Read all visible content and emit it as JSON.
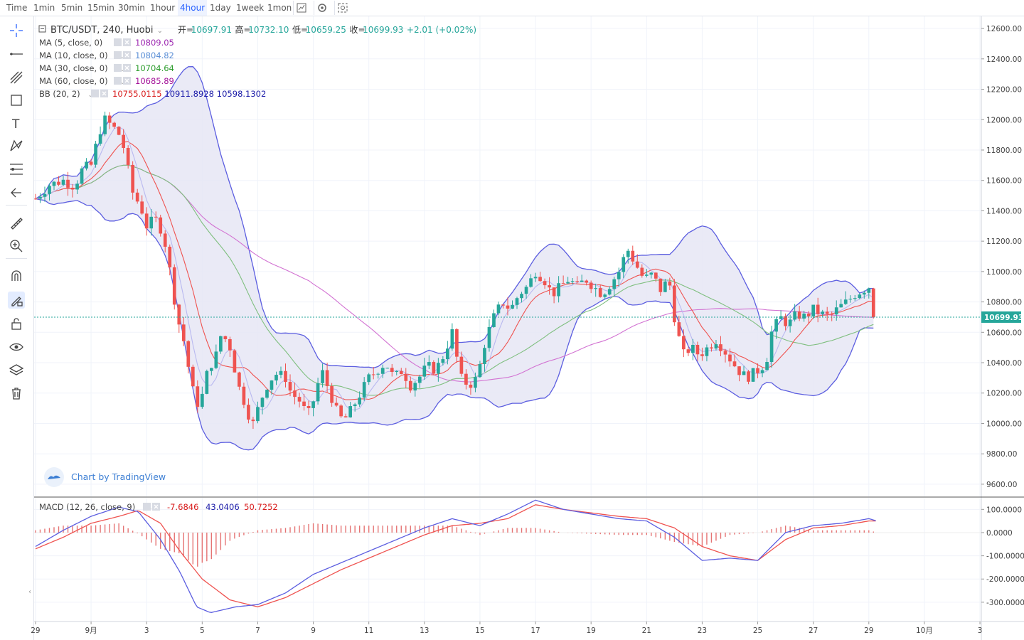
{
  "toolbar": {
    "timeframes": [
      {
        "label": "Time",
        "active": false
      },
      {
        "label": "1min",
        "active": false
      },
      {
        "label": "5min",
        "active": false
      },
      {
        "label": "15min",
        "active": false
      },
      {
        "label": "30min",
        "active": false
      },
      {
        "label": "1hour",
        "active": false
      },
      {
        "label": "4hour",
        "active": true
      },
      {
        "label": "1day",
        "active": false
      },
      {
        "label": "1week",
        "active": false
      },
      {
        "label": "1mon",
        "active": false
      }
    ],
    "icons": [
      "indicator-icon",
      "settings-icon",
      "screenshot-icon"
    ]
  },
  "sidebar": {
    "tools": [
      "crosshair-icon",
      "trend-line-icon",
      "pitchfork-icon",
      "rectangle-icon",
      "text-icon",
      "pattern-icon",
      "fib-icon",
      "back-arrow-icon",
      "ruler-icon",
      "zoom-in-icon",
      "magnet-icon",
      "lock-drawing-icon",
      "unlock-icon",
      "eye-icon",
      "layers-icon",
      "trash-icon"
    ]
  },
  "legend": {
    "symbol": "BTC/USDT, 240, Huobi",
    "open_label": "开=",
    "open": "10697.91",
    "high_label": "高=",
    "high": "10732.10",
    "low_label": "低=",
    "low": "10659.25",
    "close_label": "收=",
    "close": "10699.93",
    "change": "+2.01 (+0.02%)",
    "indicators": [
      {
        "name": "MA (5, close, 0)",
        "values": [
          "10809.05"
        ],
        "colors": [
          "#9c27b0"
        ]
      },
      {
        "name": "MA (10, close, 0)",
        "values": [
          "10804.82"
        ],
        "colors": [
          "#5b8fd6"
        ]
      },
      {
        "name": "MA (30, close, 0)",
        "values": [
          "10704.64"
        ],
        "colors": [
          "#2e9d2e"
        ]
      },
      {
        "name": "MA (60, close, 0)",
        "values": [
          "10685.89"
        ],
        "colors": [
          "#a4149a"
        ]
      },
      {
        "name": "BB (20, 2)",
        "values": [
          "10755.0115",
          "10911.8928",
          "10598.1302"
        ],
        "colors": [
          "#d81b1b",
          "#1a1aa8",
          "#1a1aa8"
        ]
      }
    ]
  },
  "macd_legend": {
    "name": "MACD (12, 26, close, 9)",
    "values": [
      "-7.6846",
      "43.0406",
      "50.7252"
    ],
    "colors": [
      "#d81b1b",
      "#1a1aa8",
      "#d81b1b"
    ]
  },
  "watermark": "Chart by TradingView",
  "last_price_label": "10699.93",
  "colors": {
    "up": "#26a69a",
    "down": "#ef5350",
    "bb": "#5c5ee0",
    "bb_fill": "#e6e6f5",
    "macd": "#5c5ee0",
    "signal": "#ef5350",
    "hist": "#e57373",
    "ma5": "#b9b9f0",
    "ma10": "#ef5350",
    "ma30": "#7fbf7f",
    "ma60": "#d272d2"
  },
  "chart_data": [
    {
      "type": "candlestick",
      "title": "BTC/USDT, 240, Huobi",
      "y_ticks": [
        9600,
        9800,
        10000,
        10200,
        10400,
        10600,
        10800,
        11000,
        11200,
        11400,
        11600,
        11800,
        12000,
        12200,
        12400,
        12600
      ],
      "y_tick_labels": [
        "9600.00",
        "9800.00",
        "10000.00",
        "10200.00",
        "10400.00",
        "10600.00",
        "10800.00",
        "11000.00",
        "11200.00",
        "11400.00",
        "11600.00",
        "11800.00",
        "12000.00",
        "12200.00",
        "12400.00",
        "12600.00"
      ],
      "ylim": [
        9520,
        12680
      ],
      "x_ticks": [
        "29",
        "9月",
        "3",
        "5",
        "7",
        "9",
        "11",
        "13",
        "15",
        "17",
        "19",
        "21",
        "23",
        "25",
        "27",
        "29",
        "10月",
        "3"
      ],
      "x_domain_days": [
        -2.05,
        32.05
      ],
      "x_tick_days": [
        -2,
        0,
        2,
        4,
        6,
        8,
        10,
        12,
        14,
        16,
        18,
        20,
        22,
        24,
        26,
        28,
        30,
        32
      ],
      "last_price": 10699.93,
      "close_path": [
        [
          -2.0,
          11480
        ],
        [
          -1.5,
          11570
        ],
        [
          -1.0,
          11600
        ],
        [
          -0.6,
          11560
        ],
        [
          -0.3,
          11680
        ],
        [
          0.0,
          11700
        ],
        [
          0.3,
          11920
        ],
        [
          0.5,
          12000
        ],
        [
          0.8,
          11950
        ],
        [
          1.1,
          11880
        ],
        [
          1.5,
          11520
        ],
        [
          1.8,
          11420
        ],
        [
          2.0,
          11300
        ],
        [
          2.3,
          11350
        ],
        [
          2.6,
          11250
        ],
        [
          2.8,
          11050
        ],
        [
          3.1,
          10700
        ],
        [
          3.4,
          10500
        ],
        [
          3.6,
          10250
        ],
        [
          3.9,
          10100
        ],
        [
          4.2,
          10350
        ],
        [
          4.5,
          10450
        ],
        [
          4.7,
          10600
        ],
        [
          5.0,
          10500
        ],
        [
          5.3,
          10250
        ],
        [
          5.6,
          10100
        ],
        [
          5.8,
          9980
        ],
        [
          6.1,
          10150
        ],
        [
          6.4,
          10280
        ],
        [
          6.7,
          10330
        ],
        [
          7.0,
          10300
        ],
        [
          7.2,
          10200
        ],
        [
          7.5,
          10150
        ],
        [
          7.8,
          10050
        ],
        [
          8.0,
          10150
        ],
        [
          8.3,
          10350
        ],
        [
          8.6,
          10200
        ],
        [
          8.9,
          10050
        ],
        [
          9.1,
          10020
        ],
        [
          9.4,
          10100
        ],
        [
          9.7,
          10200
        ],
        [
          10.0,
          10300
        ],
        [
          10.3,
          10350
        ],
        [
          10.6,
          10400
        ],
        [
          10.9,
          10300
        ],
        [
          11.2,
          10350
        ],
        [
          11.5,
          10250
        ],
        [
          11.8,
          10300
        ],
        [
          12.1,
          10380
        ],
        [
          12.4,
          10350
        ],
        [
          12.7,
          10450
        ],
        [
          13.0,
          10600
        ],
        [
          13.3,
          10300
        ],
        [
          13.6,
          10250
        ],
        [
          13.9,
          10300
        ],
        [
          14.2,
          10550
        ],
        [
          14.5,
          10700
        ],
        [
          14.8,
          10800
        ],
        [
          15.1,
          10750
        ],
        [
          15.4,
          10850
        ],
        [
          15.7,
          10900
        ],
        [
          16.0,
          11000
        ],
        [
          16.3,
          10950
        ],
        [
          16.6,
          10850
        ],
        [
          16.9,
          10900
        ],
        [
          17.2,
          10950
        ],
        [
          17.5,
          10900
        ],
        [
          17.8,
          10950
        ],
        [
          18.1,
          10900
        ],
        [
          18.4,
          10850
        ],
        [
          18.7,
          10920
        ],
        [
          19.0,
          11000
        ],
        [
          19.3,
          11150
        ],
        [
          19.6,
          11050
        ],
        [
          19.9,
          10950
        ],
        [
          20.2,
          10980
        ],
        [
          20.5,
          10880
        ],
        [
          20.8,
          10950
        ],
        [
          21.0,
          10700
        ],
        [
          21.3,
          10450
        ],
        [
          21.6,
          10500
        ],
        [
          21.9,
          10450
        ],
        [
          22.2,
          10500
        ],
        [
          22.5,
          10550
        ],
        [
          22.8,
          10480
        ],
        [
          23.1,
          10400
        ],
        [
          23.3,
          10350
        ],
        [
          23.6,
          10300
        ],
        [
          24.0,
          10350
        ],
        [
          24.3,
          10400
        ],
        [
          24.5,
          10600
        ],
        [
          24.8,
          10700
        ],
        [
          25.1,
          10650
        ],
        [
          25.4,
          10720
        ],
        [
          25.7,
          10700
        ],
        [
          26.0,
          10750
        ],
        [
          26.3,
          10720
        ],
        [
          26.6,
          10700
        ],
        [
          26.9,
          10760
        ],
        [
          27.2,
          10800
        ],
        [
          27.5,
          10850
        ],
        [
          27.8,
          10880
        ],
        [
          28.0,
          10900
        ],
        [
          28.2,
          10830
        ],
        [
          28.3,
          10700
        ]
      ]
    },
    {
      "type": "macd",
      "title": "MACD (12, 26, close, 9)",
      "y_ticks": [
        -300,
        -200,
        -100,
        0,
        100
      ],
      "y_tick_labels": [
        "-300.0000",
        "-200.0000",
        "-100.0000",
        "0.0000",
        "100.0000"
      ],
      "ylim": [
        -380,
        150
      ],
      "macd_path": [
        [
          -2,
          -60
        ],
        [
          -1,
          10
        ],
        [
          0,
          70
        ],
        [
          1,
          110
        ],
        [
          1.7,
          90
        ],
        [
          2.5,
          -30
        ],
        [
          3.2,
          -170
        ],
        [
          3.8,
          -320
        ],
        [
          4.3,
          -345
        ],
        [
          5.2,
          -320
        ],
        [
          6,
          -310
        ],
        [
          7,
          -260
        ],
        [
          8,
          -180
        ],
        [
          9,
          -130
        ],
        [
          10,
          -80
        ],
        [
          11,
          -30
        ],
        [
          12,
          20
        ],
        [
          13,
          60
        ],
        [
          14,
          30
        ],
        [
          15,
          80
        ],
        [
          16,
          140
        ],
        [
          17,
          100
        ],
        [
          18,
          80
        ],
        [
          19,
          60
        ],
        [
          20,
          50
        ],
        [
          21,
          -20
        ],
        [
          22,
          -120
        ],
        [
          23,
          -110
        ],
        [
          24,
          -120
        ],
        [
          25,
          0
        ],
        [
          26,
          30
        ],
        [
          27,
          40
        ],
        [
          28,
          60
        ],
        [
          28.3,
          50
        ]
      ],
      "signal_path": [
        [
          -2,
          -70
        ],
        [
          -1,
          -20
        ],
        [
          0,
          40
        ],
        [
          1,
          70
        ],
        [
          1.7,
          95
        ],
        [
          2.5,
          40
        ],
        [
          3.2,
          -80
        ],
        [
          4,
          -200
        ],
        [
          5,
          -290
        ],
        [
          6,
          -320
        ],
        [
          7,
          -280
        ],
        [
          8,
          -220
        ],
        [
          9,
          -160
        ],
        [
          10,
          -110
        ],
        [
          11,
          -60
        ],
        [
          12,
          -10
        ],
        [
          13,
          30
        ],
        [
          14,
          40
        ],
        [
          15,
          60
        ],
        [
          16,
          120
        ],
        [
          17,
          100
        ],
        [
          18,
          85
        ],
        [
          19,
          70
        ],
        [
          20,
          60
        ],
        [
          21,
          20
        ],
        [
          22,
          -60
        ],
        [
          23,
          -100
        ],
        [
          24,
          -120
        ],
        [
          25,
          -30
        ],
        [
          26,
          20
        ],
        [
          27,
          30
        ],
        [
          28,
          50
        ],
        [
          28.3,
          50
        ]
      ]
    }
  ]
}
